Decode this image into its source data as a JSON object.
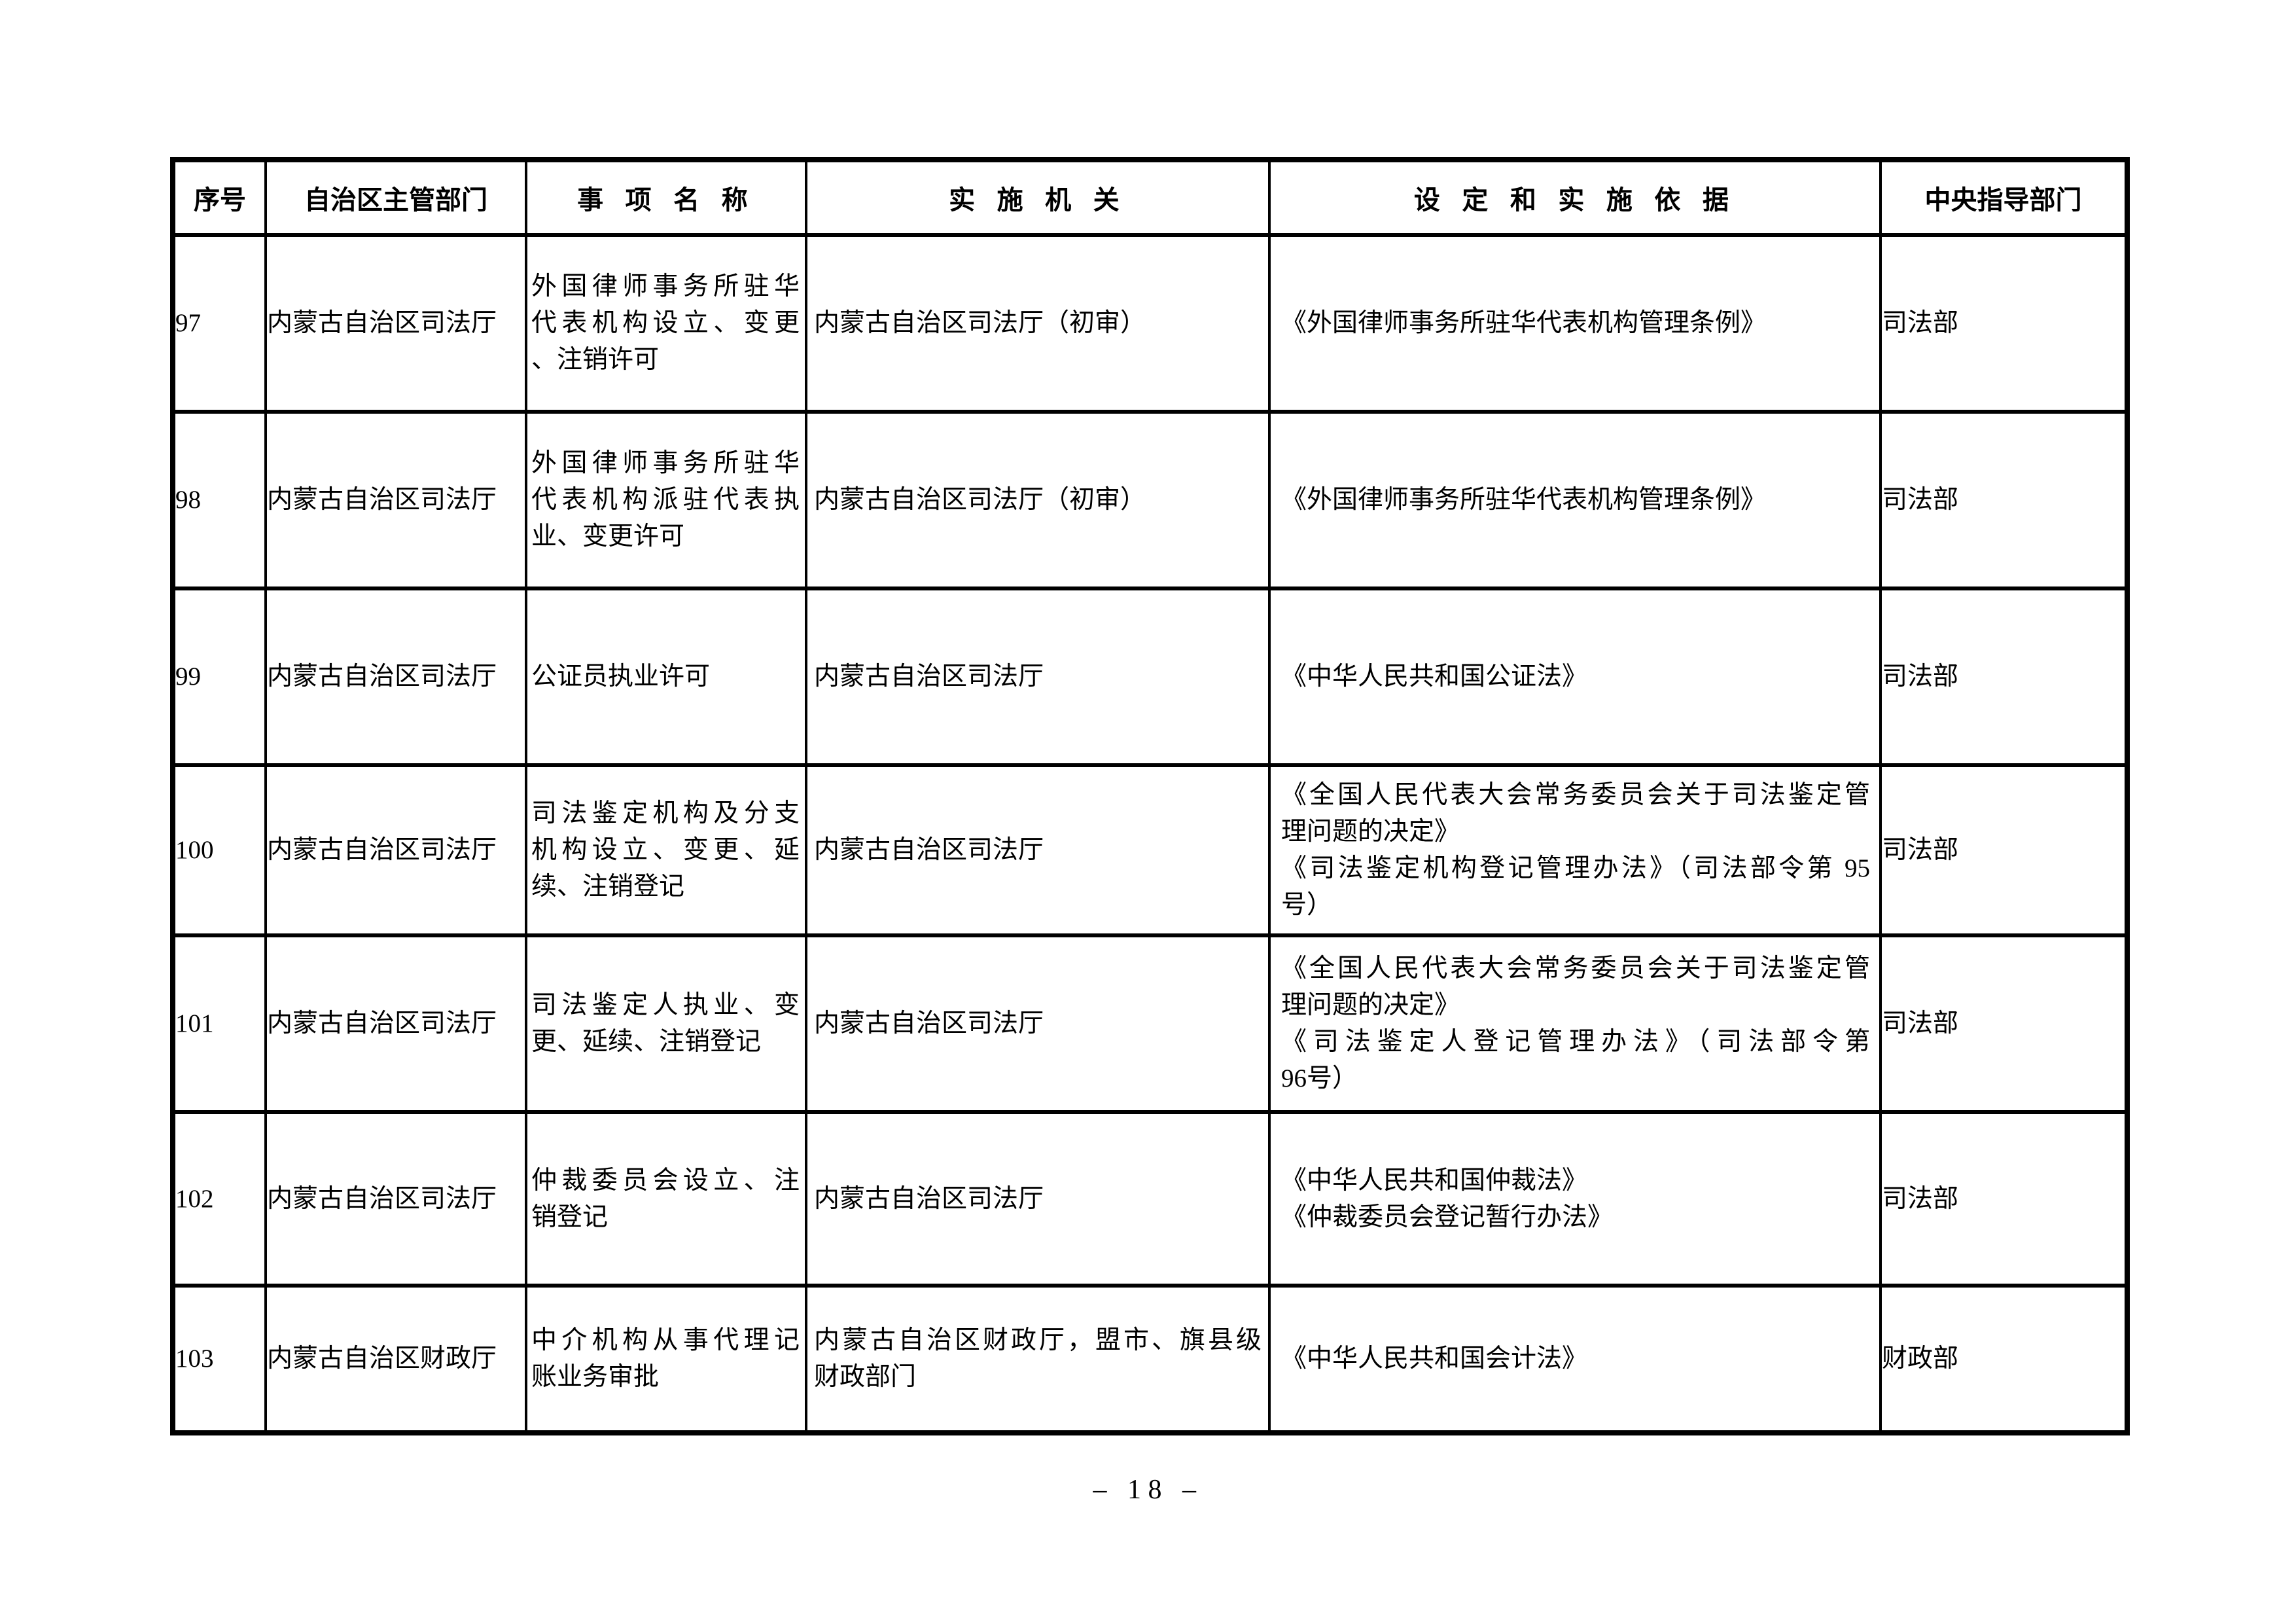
{
  "page": {
    "number_label": "– 18 –"
  },
  "table": {
    "columns": [
      {
        "label": "序号"
      },
      {
        "label": "自治区主管部门"
      },
      {
        "label": "事 项 名 称"
      },
      {
        "label": "实 施 机 关"
      },
      {
        "label": "设 定 和 实 施 依 据"
      },
      {
        "label": "中央指导部门"
      }
    ],
    "rows": [
      {
        "index": "97",
        "department": "内蒙古自治区司法厅",
        "item_name": [
          [
            "外国律师事务所驻华",
            "代表机构设立、变更",
            "、注销许可"
          ]
        ],
        "implementing_agency": [
          [
            "内蒙古自治区司法厅（初审）"
          ]
        ],
        "basis": [
          [
            "《外国律师事务所驻华代表机构管理条例》"
          ]
        ],
        "central_guidance": "司法部"
      },
      {
        "index": "98",
        "department": "内蒙古自治区司法厅",
        "item_name": [
          [
            "外国律师事务所驻华",
            "代表机构派驻代表执",
            "业、变更许可"
          ]
        ],
        "implementing_agency": [
          [
            "内蒙古自治区司法厅（初审）"
          ]
        ],
        "basis": [
          [
            "《外国律师事务所驻华代表机构管理条例》"
          ]
        ],
        "central_guidance": "司法部"
      },
      {
        "index": "99",
        "department": "内蒙古自治区司法厅",
        "item_name": [
          [
            "公证员执业许可"
          ]
        ],
        "implementing_agency": [
          [
            "内蒙古自治区司法厅"
          ]
        ],
        "basis": [
          [
            "《中华人民共和国公证法》"
          ]
        ],
        "central_guidance": "司法部"
      },
      {
        "index": "100",
        "department": "内蒙古自治区司法厅",
        "item_name": [
          [
            "司法鉴定机构及分支",
            "机构设立、变更、延",
            "续、注销登记"
          ]
        ],
        "implementing_agency": [
          [
            "内蒙古自治区司法厅"
          ]
        ],
        "basis": [
          [
            "《全国人民代表大会常务委员会关于司法鉴定管",
            "理问题的决定》"
          ],
          [
            "《司法鉴定机构登记管理办法》（司法部令第 95",
            "号）"
          ]
        ],
        "central_guidance": "司法部"
      },
      {
        "index": "101",
        "department": "内蒙古自治区司法厅",
        "item_name": [
          [
            "司法鉴定人执业、变",
            "更、延续、注销登记"
          ]
        ],
        "implementing_agency": [
          [
            "内蒙古自治区司法厅"
          ]
        ],
        "basis": [
          [
            "《全国人民代表大会常务委员会关于司法鉴定管",
            "理问题的决定》"
          ],
          [
            "《司法鉴定人登记管理办法》（司法部令第",
            "96号）"
          ]
        ],
        "central_guidance": "司法部"
      },
      {
        "index": "102",
        "department": "内蒙古自治区司法厅",
        "item_name": [
          [
            "仲裁委员会设立、注",
            "销登记"
          ]
        ],
        "implementing_agency": [
          [
            "内蒙古自治区司法厅"
          ]
        ],
        "basis": [
          [
            "《中华人民共和国仲裁法》"
          ],
          [
            "《仲裁委员会登记暂行办法》"
          ]
        ],
        "central_guidance": "司法部"
      },
      {
        "index": "103",
        "department": "内蒙古自治区财政厅",
        "item_name": [
          [
            "中介机构从事代理记",
            "账业务审批"
          ]
        ],
        "implementing_agency": [
          [
            "内蒙古自治区财政厅，盟市、旗县级",
            "财政部门"
          ]
        ],
        "basis": [
          [
            "《中华人民共和国会计法》"
          ]
        ],
        "central_guidance": "财政部"
      }
    ]
  }
}
